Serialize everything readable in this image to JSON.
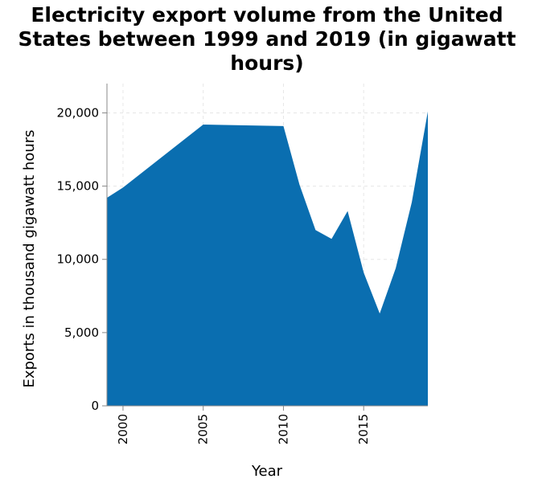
{
  "chart_data": {
    "type": "area",
    "title": "Electricity export volume from the United States between 1999 and 2019 (in gigawatt hours)",
    "title_lines": [
      "Electricity export volume from the United",
      "States between 1999 and 2019 (in gigawatt",
      "hours)"
    ],
    "xlabel": "Year",
    "ylabel": "Exports in thousand gigawatt hours",
    "x": [
      1999,
      2000,
      2005,
      2006,
      2007,
      2008,
      2009,
      2010,
      2011,
      2012,
      2013,
      2014,
      2015,
      2016,
      2017,
      2018,
      2019
    ],
    "values": [
      14200,
      14900,
      19200,
      19180,
      19160,
      19140,
      19120,
      19100,
      15100,
      12000,
      11400,
      13300,
      9100,
      6300,
      9400,
      13900,
      20100
    ],
    "xlim": [
      1999,
      2019
    ],
    "ylim": [
      0,
      22000
    ],
    "x_ticks": [
      2000,
      2005,
      2010,
      2015
    ],
    "y_ticks": [
      0,
      5000,
      10000,
      15000,
      20000
    ],
    "x_tick_labels": [
      "2000",
      "2005",
      "2010",
      "2015"
    ],
    "y_tick_labels": [
      "0",
      "5,000",
      "10,000",
      "15,000",
      "20,000"
    ],
    "grid": true,
    "fill_color": "#0a6eb0",
    "grid_color": "#e6e6e6",
    "axis_color": "#888888"
  }
}
